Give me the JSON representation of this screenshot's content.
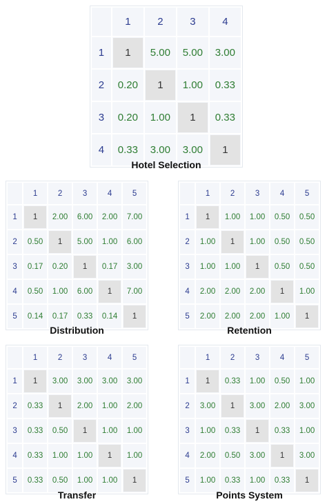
{
  "colors": {
    "header_text": "#2b3b8f",
    "value_text": "#2e7d32",
    "cell_bg": "#f4f6fa",
    "diag_bg": "#e3e3e3"
  },
  "matrices": [
    {
      "id": "hotel-selection",
      "title": "Hotel Selection",
      "headers": [
        "1",
        "2",
        "3",
        "4"
      ],
      "rows": [
        [
          "1",
          "5.00",
          "5.00",
          "3.00"
        ],
        [
          "0.20",
          "1",
          "1.00",
          "0.33"
        ],
        [
          "0.20",
          "1.00",
          "1",
          "0.33"
        ],
        [
          "0.33",
          "3.00",
          "3.00",
          "1"
        ]
      ]
    },
    {
      "id": "distribution",
      "title": "Distribution",
      "headers": [
        "1",
        "2",
        "3",
        "4",
        "5"
      ],
      "rows": [
        [
          "1",
          "2.00",
          "6.00",
          "2.00",
          "7.00"
        ],
        [
          "0.50",
          "1",
          "5.00",
          "1.00",
          "6.00"
        ],
        [
          "0.17",
          "0.20",
          "1",
          "0.17",
          "3.00"
        ],
        [
          "0.50",
          "1.00",
          "6.00",
          "1",
          "7.00"
        ],
        [
          "0.14",
          "0.17",
          "0.33",
          "0.14",
          "1"
        ]
      ]
    },
    {
      "id": "retention",
      "title": "Retention",
      "headers": [
        "1",
        "2",
        "3",
        "4",
        "5"
      ],
      "rows": [
        [
          "1",
          "1.00",
          "1.00",
          "0.50",
          "0.50"
        ],
        [
          "1.00",
          "1",
          "1.00",
          "0.50",
          "0.50"
        ],
        [
          "1.00",
          "1.00",
          "1",
          "0.50",
          "0.50"
        ],
        [
          "2.00",
          "2.00",
          "2.00",
          "1",
          "1.00"
        ],
        [
          "2.00",
          "2.00",
          "2.00",
          "1.00",
          "1"
        ]
      ]
    },
    {
      "id": "transfer",
      "title": "Transfer",
      "headers": [
        "1",
        "2",
        "3",
        "4",
        "5"
      ],
      "rows": [
        [
          "1",
          "3.00",
          "3.00",
          "3.00",
          "3.00"
        ],
        [
          "0.33",
          "1",
          "2.00",
          "1.00",
          "2.00"
        ],
        [
          "0.33",
          "0.50",
          "1",
          "1.00",
          "1.00"
        ],
        [
          "0.33",
          "1.00",
          "1.00",
          "1",
          "1.00"
        ],
        [
          "0.33",
          "0.50",
          "1.00",
          "1.00",
          "1"
        ]
      ]
    },
    {
      "id": "points-system",
      "title": "Points System",
      "headers": [
        "1",
        "2",
        "3",
        "4",
        "5"
      ],
      "rows": [
        [
          "1",
          "0.33",
          "1.00",
          "0.50",
          "1.00"
        ],
        [
          "3.00",
          "1",
          "3.00",
          "2.00",
          "3.00"
        ],
        [
          "1.00",
          "0.33",
          "1",
          "0.33",
          "1.00"
        ],
        [
          "2.00",
          "0.50",
          "3.00",
          "1",
          "3.00"
        ],
        [
          "1.00",
          "0.33",
          "1.00",
          "0.33",
          "1"
        ]
      ]
    }
  ]
}
